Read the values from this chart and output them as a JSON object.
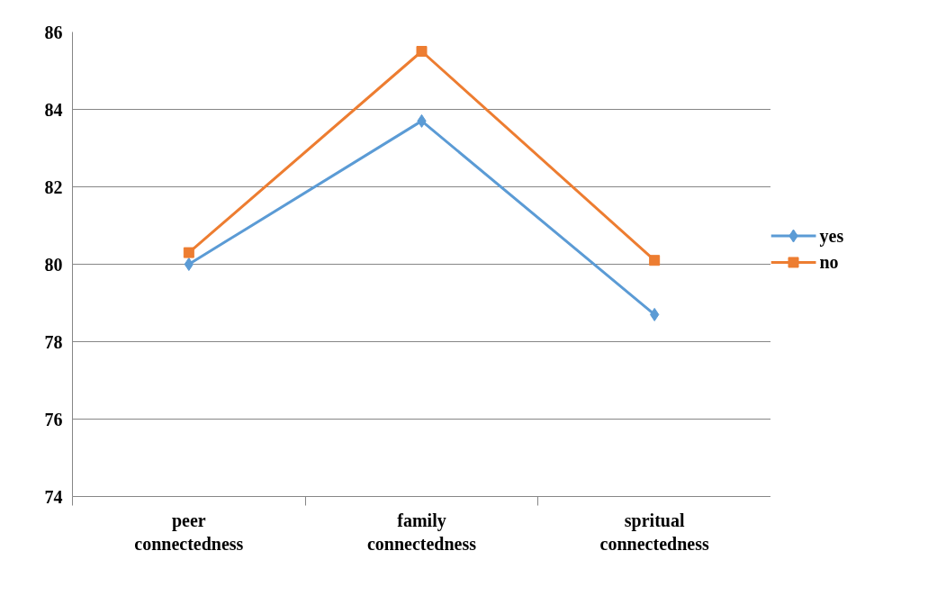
{
  "chart_data": {
    "type": "line",
    "categories": [
      "peer connectedness",
      "family connectedness",
      "spritual connectedness"
    ],
    "series": [
      {
        "name": "yes",
        "color": "#5b9bd5",
        "marker": "diamond",
        "values": [
          80.0,
          83.7,
          78.7
        ]
      },
      {
        "name": "no",
        "color": "#ed7d31",
        "marker": "square",
        "values": [
          80.3,
          85.5,
          80.1
        ]
      }
    ],
    "ylim": [
      74,
      86
    ],
    "yticks": [
      74,
      76,
      78,
      80,
      82,
      84,
      86
    ],
    "grid": "y",
    "legend": "right"
  }
}
